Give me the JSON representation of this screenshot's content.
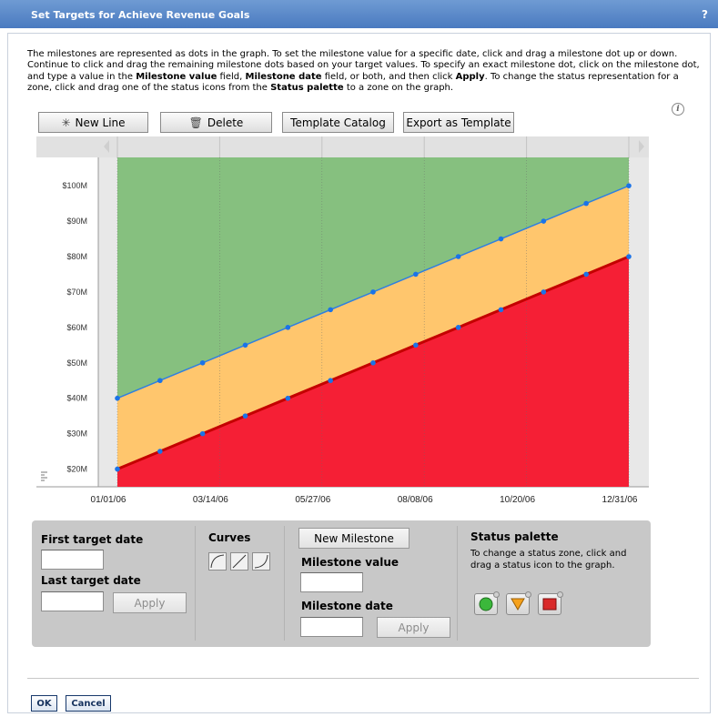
{
  "window": {
    "title": "Set Targets for Achieve Revenue Goals",
    "help": "?"
  },
  "instructions": {
    "parts": [
      {
        "text": "The milestones are represented as dots in the graph. To set the milestone value for a specific date, click and drag a milestone dot up or down. Continue to click and drag the remaining milestone dots based on your target values. To specify an exact milestone dot, click on the milestone dot, and type a value in the ",
        "bold": false
      },
      {
        "text": "Milestone value",
        "bold": true
      },
      {
        "text": " field,  ",
        "bold": false
      },
      {
        "text": "Milestone date",
        "bold": true
      },
      {
        "text": " field, or both, and then click ",
        "bold": false
      },
      {
        "text": "Apply",
        "bold": true
      },
      {
        "text": ". To change the status representation for a zone, click and drag one of the status icons from the ",
        "bold": false
      },
      {
        "text": "Status palette",
        "bold": true
      },
      {
        "text": " to a zone on the graph.",
        "bold": false
      }
    ]
  },
  "toolbar": {
    "new_line": "New Line",
    "delete": "Delete",
    "template_catalog": "Template Catalog",
    "export_template": "Export as Template"
  },
  "chart_data": {
    "type": "area",
    "x": [
      "01/01/06",
      "02/03/06",
      "03/05/06",
      "04/06/06",
      "05/06/06",
      "06/05/06",
      "07/06/06",
      "08/05/06",
      "09/05/06",
      "10/05/06",
      "11/05/06",
      "12/05/06",
      "12/31/06"
    ],
    "x_tick_labels": [
      "01/01/06",
      "03/14/06",
      "05/27/06",
      "08/08/06",
      "10/20/06",
      "12/31/06"
    ],
    "y_tick_labels": [
      "$20M",
      "$30M",
      "$40M",
      "$50M",
      "$60M",
      "$70M",
      "$80M",
      "$90M",
      "$100M"
    ],
    "ylim": [
      15,
      108
    ],
    "y_unit": "$M",
    "series": [
      {
        "values": [
          40,
          45,
          50,
          55,
          60,
          65,
          70,
          75,
          80,
          85,
          90,
          95,
          100
        ],
        "line_color": "#2f7fe0",
        "zone_above_color": "#86c07f"
      },
      {
        "values": [
          20,
          25,
          30,
          35,
          40,
          45,
          50,
          55,
          60,
          65,
          70,
          75,
          80
        ],
        "line_color": "#c40000",
        "zone_above_color": "#ffc66d"
      }
    ],
    "bottom_zone_color": "#f51f35",
    "point_color": "#1a73e8",
    "grid": true
  },
  "panel": {
    "first_target_label": "First target date",
    "first_target_value": "",
    "last_target_label": "Last target date",
    "last_target_value": "",
    "apply_dates": "Apply",
    "curves_label": "Curves",
    "new_milestone": "New Milestone",
    "milestone_value_label": "Milestone value",
    "milestone_value": "",
    "milestone_date_label": "Milestone date",
    "milestone_date": "",
    "apply_milestone": "Apply",
    "status_palette_label": "Status palette",
    "status_palette_note": "To change a status zone, click and drag a status icon to the graph.",
    "status_icons": [
      "green-circle-icon",
      "yellow-down-triangle-icon",
      "red-square-icon"
    ]
  },
  "footer": {
    "ok": "OK",
    "cancel": "Cancel"
  }
}
